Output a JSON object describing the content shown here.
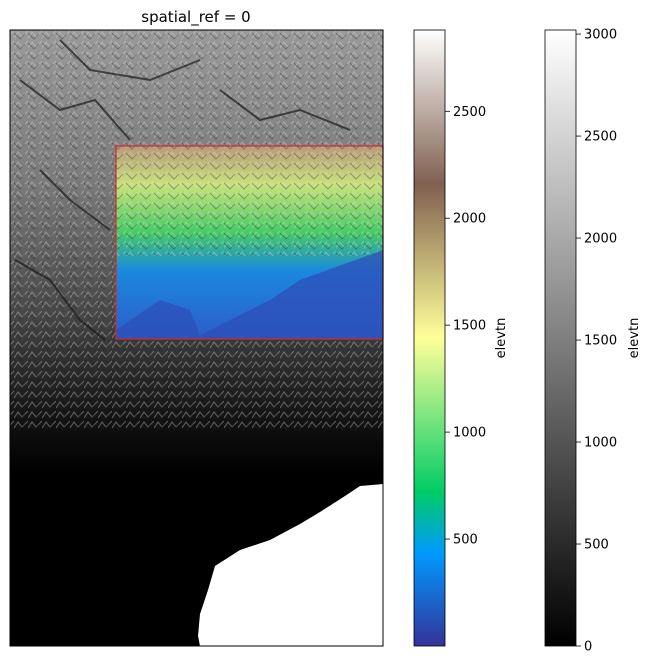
{
  "chart_data": [
    {
      "type": "heatmap",
      "title": "spatial_ref = 0",
      "description_layer": "grayscale elevation raster, full extent",
      "colormap": "gray",
      "colorbar": {
        "label": "elevtn",
        "range": [
          0,
          3020
        ],
        "ticks": [
          0,
          500,
          1000,
          1500,
          2000,
          2500,
          3000
        ]
      },
      "xaxis_ticks_visible": false,
      "yaxis_ticks_visible": false,
      "nodata_region": "white area in lower-right (sea)"
    },
    {
      "type": "heatmap",
      "description_layer": "terrain-colormap elevation subset overlaid inside red bounding box",
      "colormap": "terrain",
      "colorbar": {
        "label": "elevtn",
        "range": [
          0,
          2880
        ],
        "ticks": [
          500,
          1000,
          1500,
          2000,
          2500
        ]
      },
      "bbox_outline_color": "#d62728"
    }
  ],
  "colors": {
    "terrain": [
      "#333399",
      "#0099ff",
      "#00cc66",
      "#ffff99",
      "#806050",
      "#ffffff"
    ],
    "gray": [
      "#000000",
      "#ffffff"
    ],
    "bbox": "#d62728"
  }
}
